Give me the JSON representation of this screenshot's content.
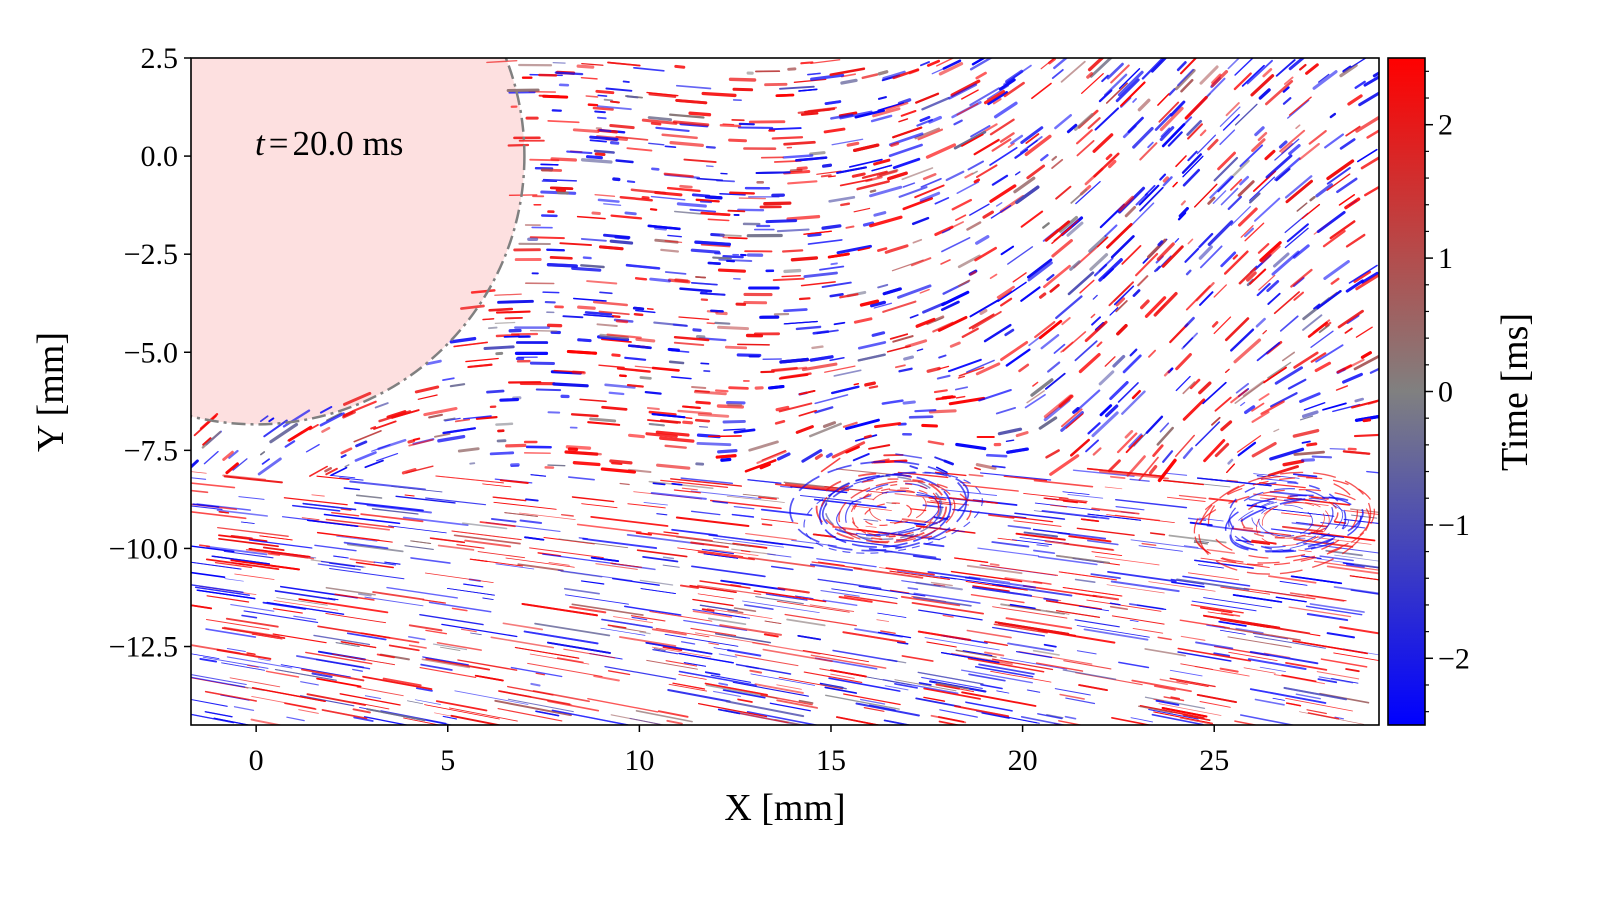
{
  "chart_data": {
    "type": "scatter",
    "subtype": "particle-streak image (particle tracking velocimetry)",
    "annotation": {
      "prefix": "t",
      "operator": "=",
      "value": "20.0 ms"
    },
    "xlabel": "X [mm]",
    "ylabel": "Y [mm]",
    "xlim": [
      -1.7,
      29.3
    ],
    "ylim": [
      -14.5,
      2.5
    ],
    "xticks": [
      0,
      5,
      10,
      15,
      20,
      25
    ],
    "xtick_labels": [
      "0",
      "5",
      "10",
      "15",
      "20",
      "25"
    ],
    "yticks": [
      2.5,
      0.0,
      -2.5,
      -5.0,
      -7.5,
      -10.0,
      -12.5
    ],
    "ytick_labels": [
      "2.5",
      "0.0",
      "−2.5",
      "−5.0",
      "−7.5",
      "−10.0",
      "−12.5"
    ],
    "grid": false,
    "region": {
      "shape": "circle",
      "center": [
        0,
        0
      ],
      "radius": 7.0,
      "fill": "#fde0e0",
      "edge": "#808080",
      "linestyle": "dash-dot"
    },
    "vortices": [
      {
        "x": 16.5,
        "y": -9.0
      },
      {
        "x": 27.0,
        "y": -9.3
      }
    ],
    "colorbar": {
      "label": "Time [ms]",
      "range": [
        -2.5,
        2.5
      ],
      "ticks": [
        2,
        1,
        0,
        -1,
        -2
      ],
      "tick_labels": [
        "2",
        "1",
        "0",
        "−1",
        "−2"
      ],
      "colors": [
        "#0000ff",
        "#808080",
        "#ff0000"
      ]
    }
  }
}
